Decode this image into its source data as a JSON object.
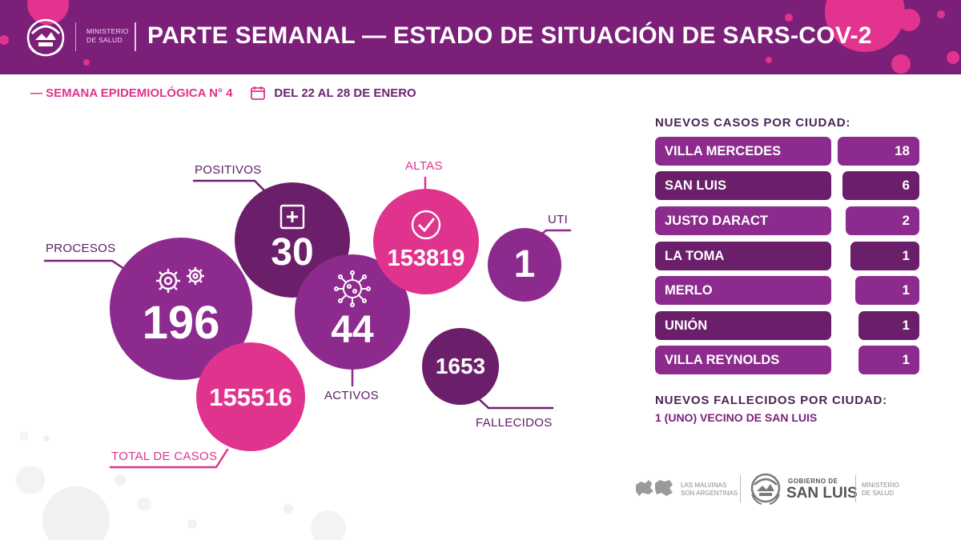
{
  "header": {
    "ministry_line1": "MINISTERIO",
    "ministry_line2": "DE SALUD",
    "title": "PARTE SEMANAL — ESTADO DE SITUACIÓN DE SARS-COV-2",
    "logo_icon": "san-luis-coat-of-arms-icon"
  },
  "week": {
    "label": "— SEMANA EPIDEMIOLÓGICA N° 4",
    "dates": "DEL 22 AL 28 DE ENERO",
    "icon": "calendar-icon"
  },
  "bubbles": {
    "procesos": {
      "label": "PROCESOS",
      "value": "196",
      "icon": "gears-icon"
    },
    "positivos": {
      "label": "POSITIVOS",
      "value": "30",
      "icon": "plus-box-icon"
    },
    "activos": {
      "label": "ACTIVOS",
      "value": "44",
      "icon": "virus-icon"
    },
    "altas": {
      "label": "ALTAS",
      "value": "153819",
      "icon": "check-circle-icon"
    },
    "uti": {
      "label": "UTI",
      "value": "1"
    },
    "fallecidos": {
      "label": "FALLECIDOS",
      "value": "1653"
    },
    "total": {
      "label": "TOTAL DE CASOS",
      "value": "155516"
    }
  },
  "cities": {
    "title": "NUEVOS CASOS POR CIUDAD:",
    "rows": [
      {
        "name": "VILLA MERCEDES",
        "count": "18"
      },
      {
        "name": "SAN LUIS",
        "count": "6"
      },
      {
        "name": "JUSTO DARACT",
        "count": "2"
      },
      {
        "name": "LA TOMA",
        "count": "1"
      },
      {
        "name": "MERLO",
        "count": "1"
      },
      {
        "name": "UNIÓN",
        "count": "1"
      },
      {
        "name": "VILLA REYNOLDS",
        "count": "1"
      }
    ]
  },
  "deaths": {
    "title": "NUEVOS FALLECIDOS POR CIUDAD:",
    "note": "1 (UNO) VECINO DE SAN LUIS"
  },
  "footer": {
    "malvinas_line1": "LAS MALVINAS",
    "malvinas_line2": "SON ARGENTINAS",
    "gobierno_de": "GOBIERNO DE",
    "san_luis": "SAN LUIS",
    "ministry_line1": "MINISTERIO",
    "ministry_line2": "DE SALUD"
  },
  "colors": {
    "purple_dark": "#7b1f79",
    "purple_mid": "#8c2b8d",
    "pink": "#e0338e",
    "plum": "#6b1f6a"
  }
}
